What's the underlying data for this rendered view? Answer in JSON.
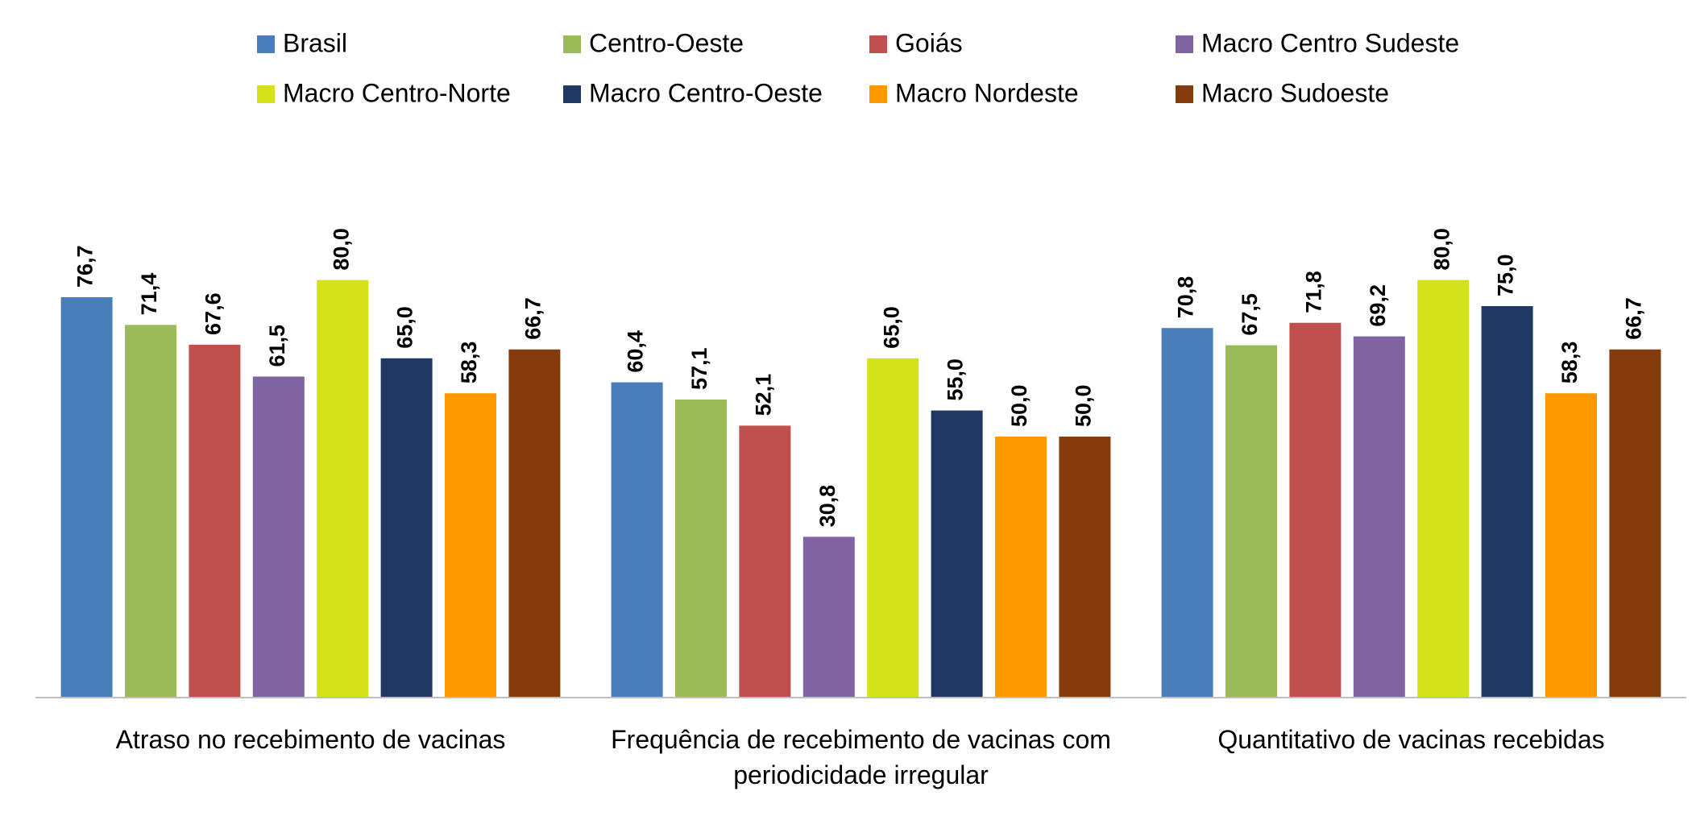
{
  "chart_data": {
    "type": "bar",
    "categories": [
      "Atraso no recebimento de vacinas",
      "Frequência de recebimento de vacinas com periodicidade irregular",
      "Quantitativo de vacinas recebidas"
    ],
    "series": [
      {
        "name": "Brasil",
        "color": "#4a7ebb",
        "values": [
          76.7,
          60.4,
          70.8
        ],
        "value_labels": [
          "76,7",
          "60,4",
          "70,8"
        ]
      },
      {
        "name": "Centro-Oeste",
        "color": "#9bbb59",
        "values": [
          71.4,
          57.1,
          67.5
        ],
        "value_labels": [
          "71,4",
          "57,1",
          "67,5"
        ]
      },
      {
        "name": "Goiás",
        "color": "#c0504d",
        "values": [
          67.6,
          52.1,
          71.8
        ],
        "value_labels": [
          "67,6",
          "52,1",
          "71,8"
        ]
      },
      {
        "name": "Macro Centro Sudeste",
        "color": "#8064a2",
        "values": [
          61.5,
          30.8,
          69.2
        ],
        "value_labels": [
          "61,5",
          "30,8",
          "69,2"
        ]
      },
      {
        "name": "Macro Centro-Norte",
        "color": "#d4e21c",
        "values": [
          80.0,
          65.0,
          80.0
        ],
        "value_labels": [
          "80,0",
          "65,0",
          "80,0"
        ]
      },
      {
        "name": "Macro Centro-Oeste",
        "color": "#1f3864",
        "values": [
          65.0,
          55.0,
          75.0
        ],
        "value_labels": [
          "65,0",
          "55,0",
          "75,0"
        ]
      },
      {
        "name": "Macro Nordeste",
        "color": "#ff9900",
        "values": [
          58.3,
          50.0,
          58.3
        ],
        "value_labels": [
          "58,3",
          "50,0",
          "58,3"
        ]
      },
      {
        "name": "Macro Sudoeste",
        "color": "#843c0c",
        "values": [
          66.7,
          50.0,
          66.7
        ],
        "value_labels": [
          "66,7",
          "50,0",
          "66,7"
        ]
      }
    ],
    "ylim": [
      0,
      100
    ],
    "legend": "top"
  }
}
